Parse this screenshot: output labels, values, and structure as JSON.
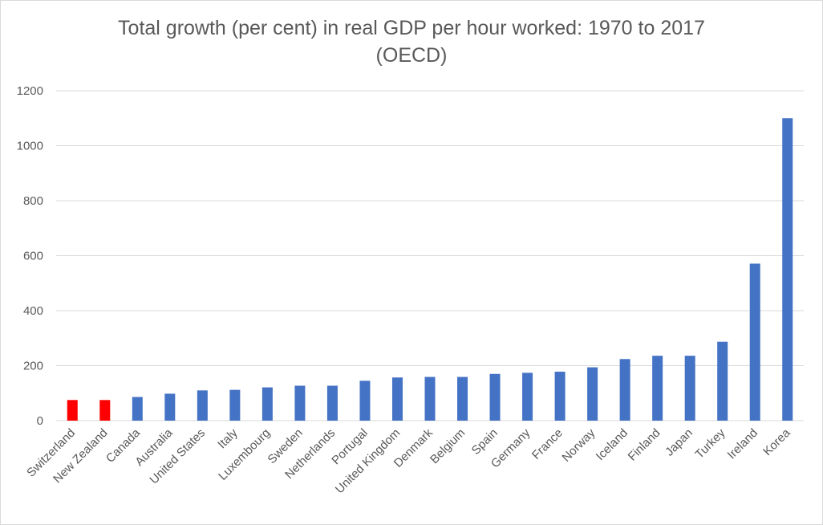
{
  "chart_data": {
    "type": "bar",
    "title_line1": "Total growth (per cent) in real GDP per hour worked: 1970 to 2017",
    "title_line2": "(OECD)",
    "xlabel": "",
    "ylabel": "",
    "ylim": [
      0,
      1200
    ],
    "yticks": [
      "0",
      "200",
      "400",
      "600",
      "800",
      "1000",
      "1200"
    ],
    "grid": true,
    "legend": "none",
    "categories": [
      "Switzerland",
      "New Zealand",
      "Canada",
      "Australia",
      "United States",
      "Italy",
      "Luxembourg",
      "Sweden",
      "Netherlands",
      "Portugal",
      "United Kingdom",
      "Denmark",
      "Belgium",
      "Spain",
      "Germany",
      "France",
      "Norway",
      "Iceland",
      "Finland",
      "Japan",
      "Turkey",
      "Ireland",
      "Korea"
    ],
    "values": [
      75,
      75,
      86,
      98,
      110,
      112,
      121,
      127,
      127,
      145,
      157,
      159,
      159,
      170,
      174,
      178,
      194,
      224,
      236,
      236,
      287,
      571,
      1100
    ],
    "highlight": [
      "Switzerland",
      "New Zealand"
    ],
    "colors": {
      "bar": "#4472c4",
      "highlight": "#ff0000",
      "grid": "#d9d9d9",
      "text": "#595959"
    }
  }
}
